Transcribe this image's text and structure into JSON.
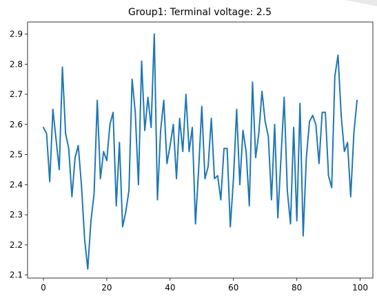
{
  "chart_data": {
    "type": "line",
    "title": "Group1: Terminal voltage: 2.5",
    "xlabel": "",
    "ylabel": "",
    "xlim": [
      -5,
      104
    ],
    "ylim": [
      2.09,
      2.94
    ],
    "xticks": [
      0,
      20,
      40,
      60,
      80,
      100
    ],
    "yticks": [
      2.1,
      2.2,
      2.3,
      2.4,
      2.5,
      2.6,
      2.7,
      2.8,
      2.9
    ],
    "grid": false,
    "line_color": "#1f77b4",
    "series": [
      {
        "x": [
          0,
          1,
          2,
          3,
          4,
          5,
          6,
          7,
          8,
          9,
          10,
          11,
          12,
          13,
          14,
          15,
          16,
          17,
          18,
          19,
          20,
          21,
          22,
          23,
          24,
          25,
          26,
          27,
          28,
          29,
          30,
          31,
          32,
          33,
          34,
          35,
          36,
          37,
          38,
          39,
          40,
          41,
          42,
          43,
          44,
          45,
          46,
          47,
          48,
          49,
          50,
          51,
          52,
          53,
          54,
          55,
          56,
          57,
          58,
          59,
          60,
          61,
          62,
          63,
          64,
          65,
          66,
          67,
          68,
          69,
          70,
          71,
          72,
          73,
          74,
          75,
          76,
          77,
          78,
          79,
          80,
          81,
          82,
          83,
          84,
          85,
          86,
          87,
          88,
          89,
          90,
          91,
          92,
          93,
          94,
          95,
          96,
          97,
          98,
          99
        ],
        "values": [
          2.59,
          2.57,
          2.41,
          2.65,
          2.55,
          2.45,
          2.79,
          2.57,
          2.52,
          2.36,
          2.49,
          2.53,
          2.4,
          2.22,
          2.12,
          2.28,
          2.37,
          2.68,
          2.42,
          2.51,
          2.48,
          2.6,
          2.64,
          2.33,
          2.54,
          2.26,
          2.31,
          2.38,
          2.75,
          2.64,
          2.4,
          2.81,
          2.58,
          2.69,
          2.59,
          2.9,
          2.35,
          2.58,
          2.68,
          2.47,
          2.53,
          2.6,
          2.42,
          2.62,
          2.51,
          2.7,
          2.51,
          2.59,
          2.27,
          2.45,
          2.66,
          2.42,
          2.46,
          2.62,
          2.42,
          2.43,
          2.35,
          2.52,
          2.52,
          2.26,
          2.42,
          2.65,
          2.4,
          2.58,
          2.51,
          2.33,
          2.74,
          2.49,
          2.57,
          2.71,
          2.61,
          2.56,
          2.35,
          2.6,
          2.29,
          2.49,
          2.69,
          2.38,
          2.27,
          2.59,
          2.28,
          2.67,
          2.23,
          2.49,
          2.61,
          2.63,
          2.6,
          2.47,
          2.64,
          2.64,
          2.43,
          2.39,
          2.76,
          2.83,
          2.63,
          2.51,
          2.54,
          2.36,
          2.57,
          2.68
        ]
      }
    ]
  }
}
